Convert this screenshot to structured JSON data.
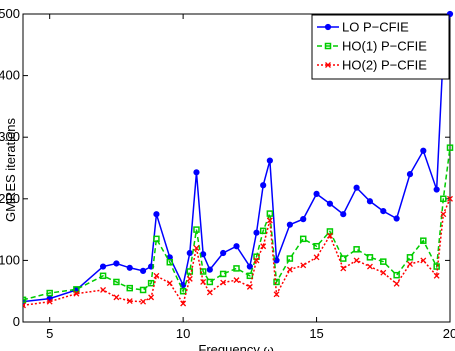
{
  "chart_data": {
    "type": "line",
    "xlabel": "Frequency ω",
    "ylabel": "GMRES iterations",
    "xlim": [
      4,
      20
    ],
    "ylim": [
      0,
      500
    ],
    "xticks": [
      5,
      10,
      15,
      20
    ],
    "yticks": [
      0,
      100,
      200,
      300,
      400,
      500
    ],
    "grid": false,
    "legend_position": "top-right",
    "x": [
      4,
      5,
      6,
      7,
      7.5,
      8,
      8.5,
      8.8,
      9,
      9.5,
      10,
      10.25,
      10.5,
      10.75,
      11,
      11.5,
      12,
      12.5,
      12.75,
      13,
      13.25,
      13.5,
      14,
      14.5,
      15,
      15.5,
      16,
      16.5,
      17,
      17.5,
      18,
      18.5,
      19,
      19.5,
      19.75,
      20
    ],
    "series": [
      {
        "name": "LO P−CFIE",
        "color": "#0000ff",
        "marker": "circle",
        "line_style": "solid",
        "values": [
          33,
          38,
          52,
          90,
          95,
          88,
          83,
          90,
          175,
          105,
          60,
          112,
          243,
          110,
          85,
          112,
          123,
          90,
          145,
          222,
          262,
          100,
          158,
          167,
          208,
          192,
          175,
          218,
          196,
          180,
          168,
          240,
          278,
          215,
          440,
          500
        ]
      },
      {
        "name": "HO(1) P−CFIE",
        "color": "#00cc00",
        "marker": "square",
        "line_style": "dashed",
        "values": [
          36,
          47,
          53,
          75,
          65,
          55,
          52,
          63,
          135,
          97,
          50,
          82,
          150,
          82,
          65,
          78,
          87,
          75,
          106,
          148,
          176,
          65,
          103,
          135,
          123,
          147,
          103,
          118,
          105,
          98,
          76,
          105,
          132,
          90,
          200,
          283
        ]
      },
      {
        "name": "HO(2) P−CFIE",
        "color": "#ff0000",
        "marker": "x",
        "line_style": "dotted",
        "values": [
          27,
          33,
          46,
          52,
          40,
          34,
          33,
          40,
          75,
          63,
          30,
          70,
          120,
          65,
          48,
          64,
          68,
          57,
          100,
          123,
          165,
          45,
          85,
          92,
          105,
          140,
          87,
          100,
          90,
          80,
          62,
          94,
          100,
          75,
          175,
          200
        ]
      }
    ]
  }
}
